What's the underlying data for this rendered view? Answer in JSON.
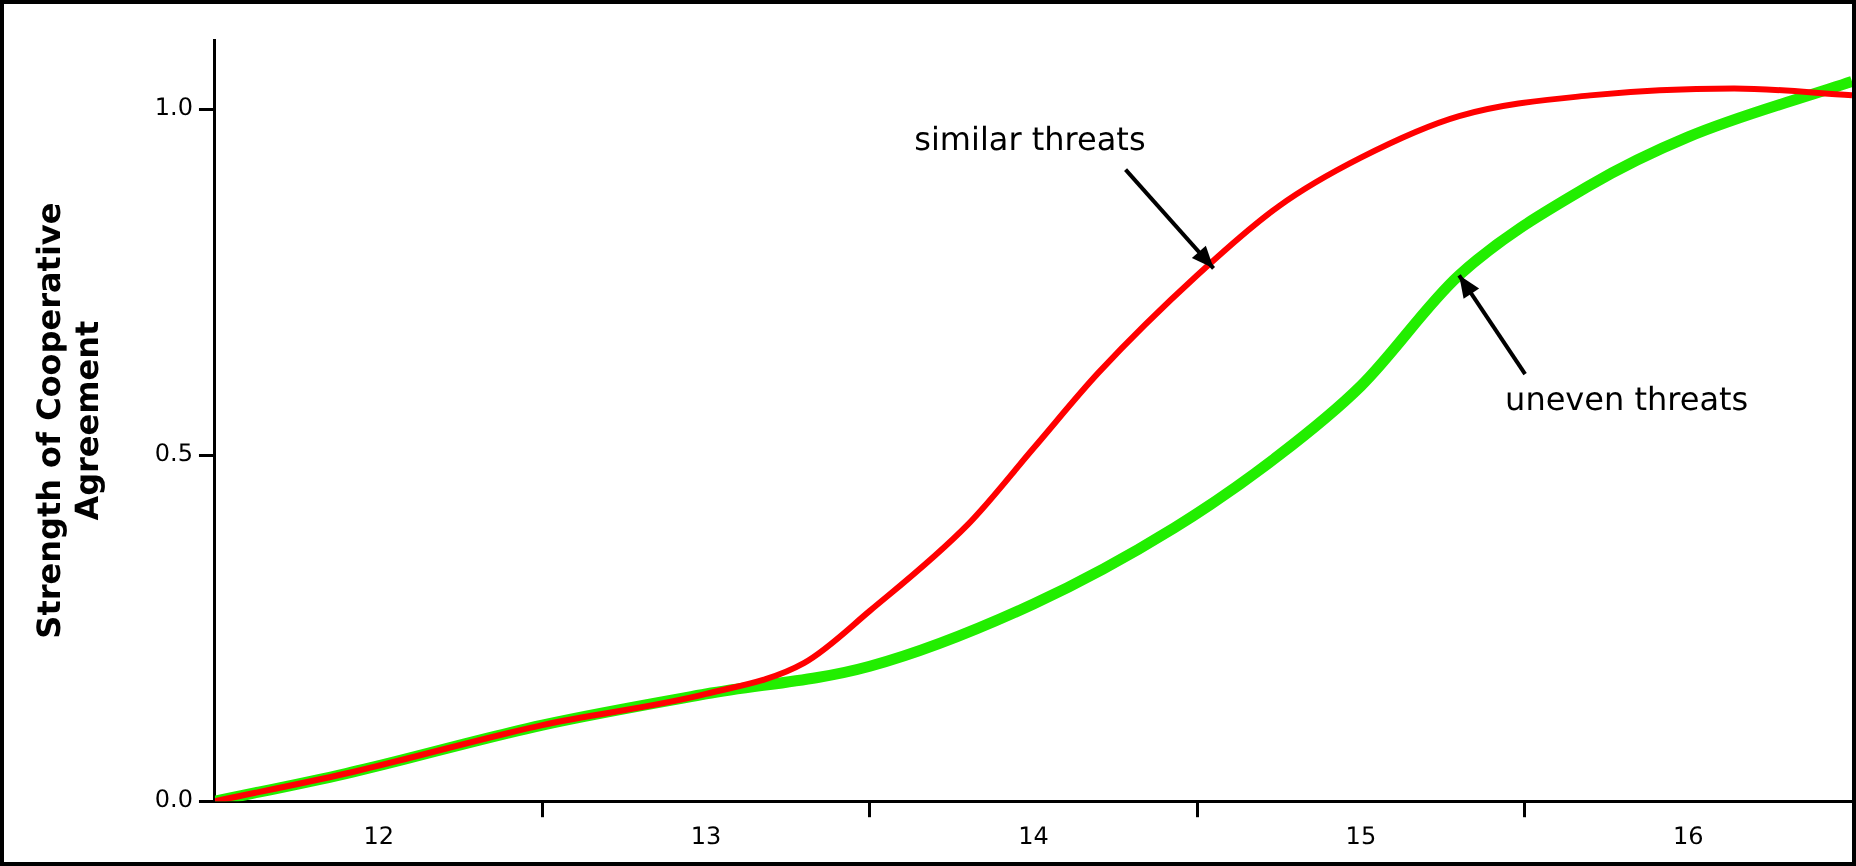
{
  "chart_data": {
    "type": "line",
    "ylabel": "Strength of Cooperative Agreement",
    "xlim": [
      11.5,
      16.5
    ],
    "ylim": [
      0,
      1.1
    ],
    "xticks": [
      {
        "value": 12,
        "label": "12"
      },
      {
        "value": 12.5,
        "label": null
      },
      {
        "value": 13,
        "label": "13"
      },
      {
        "value": 13.5,
        "label": null
      },
      {
        "value": 14,
        "label": "14"
      },
      {
        "value": 14.5,
        "label": null
      },
      {
        "value": 15,
        "label": "15"
      },
      {
        "value": 15.5,
        "label": null
      },
      {
        "value": 16,
        "label": "16"
      }
    ],
    "yticks": [
      {
        "value": 0,
        "label": "0.0"
      },
      {
        "value": 0.5,
        "label": "0.5"
      },
      {
        "value": 1,
        "label": "1.0"
      }
    ],
    "series": [
      {
        "color": "#ff0000",
        "x": [
          11.5,
          11.9,
          12.5,
          13.0,
          13.3,
          13.5,
          13.8,
          14.0,
          14.2,
          14.5,
          14.75,
          15.0,
          15.3,
          15.7,
          16.14,
          16.5
        ],
        "values": [
          0,
          0.04,
          0.11,
          0.155,
          0.2,
          0.275,
          0.4,
          0.51,
          0.62,
          0.76,
          0.86,
          0.93,
          0.99,
          1.02,
          1.03,
          1.02
        ]
      },
      {
        "color": "#22ee00",
        "x": [
          11.5,
          11.9,
          12.5,
          13.0,
          13.5,
          14.0,
          14.43,
          14.75,
          15.0,
          15.3,
          15.7,
          16.0,
          16.5
        ],
        "values": [
          0,
          0.04,
          0.11,
          0.155,
          0.195,
          0.285,
          0.395,
          0.5,
          0.6,
          0.76,
          0.89,
          0.96,
          1.04
        ]
      }
    ],
    "annotations": [
      {
        "text": "similar threats",
        "x": 14.55,
        "y": 0.77
      },
      {
        "text": "uneven threats",
        "x": 15.3,
        "y": 0.76
      }
    ],
    "grid": false,
    "legend": false,
    "marker": "none",
    "line_style": "solid"
  }
}
